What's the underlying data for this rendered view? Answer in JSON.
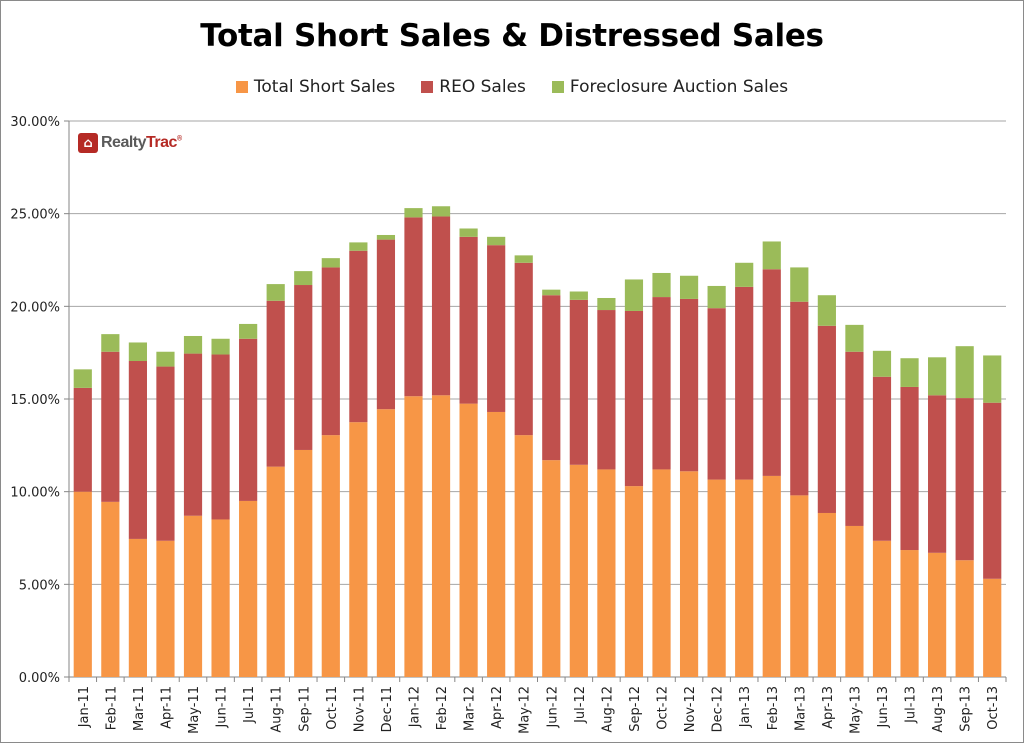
{
  "chart_data": {
    "type": "bar",
    "stacked": true,
    "title": "Total Short Sales & Distressed Sales",
    "xlabel": "",
    "ylabel": "",
    "ylim": [
      0,
      30
    ],
    "yticks": [
      "0.00%",
      "5.00%",
      "10.00%",
      "15.00%",
      "20.00%",
      "25.00%",
      "30.00%"
    ],
    "ytick_values": [
      0,
      5,
      10,
      15,
      20,
      25,
      30
    ],
    "grid": true,
    "legend_position": "top",
    "categories": [
      "Jan-11",
      "Feb-11",
      "Mar-11",
      "Apr-11",
      "May-11",
      "Jun-11",
      "Jul-11",
      "Aug-11",
      "Sep-11",
      "Oct-11",
      "Nov-11",
      "Dec-11",
      "Jan-12",
      "Feb-12",
      "Mar-12",
      "Apr-12",
      "May-12",
      "Jun-12",
      "Jul-12",
      "Aug-12",
      "Sep-12",
      "Oct-12",
      "Nov-12",
      "Dec-12",
      "Jan-13",
      "Feb-13",
      "Mar-13",
      "Apr-13",
      "May-13",
      "Jun-13",
      "Jul-13",
      "Aug-13",
      "Sep-13",
      "Oct-13"
    ],
    "series": [
      {
        "name": "Total Short Sales",
        "color": "#f79646",
        "values": [
          10.0,
          9.45,
          7.45,
          7.35,
          8.7,
          8.5,
          9.5,
          11.35,
          12.25,
          13.05,
          13.75,
          14.45,
          15.15,
          15.2,
          14.75,
          14.3,
          13.05,
          11.7,
          11.45,
          11.2,
          10.3,
          11.2,
          11.1,
          10.65,
          10.65,
          10.85,
          9.8,
          8.85,
          8.15,
          7.35,
          6.85,
          6.7,
          6.3,
          5.3
        ]
      },
      {
        "name": "REO Sales",
        "color": "#c0504d",
        "values": [
          5.6,
          8.1,
          9.6,
          9.4,
          8.75,
          8.9,
          8.75,
          8.95,
          8.9,
          9.05,
          9.25,
          9.15,
          9.65,
          9.65,
          9.0,
          9.0,
          9.3,
          8.9,
          8.9,
          8.6,
          9.45,
          9.3,
          9.3,
          9.25,
          10.4,
          11.15,
          10.45,
          10.1,
          9.4,
          8.85,
          8.8,
          8.5,
          8.75,
          9.5
        ]
      },
      {
        "name": "Foreclosure Auction Sales",
        "color": "#9bbb59",
        "values": [
          1.0,
          0.95,
          1.0,
          0.8,
          0.95,
          0.85,
          0.8,
          0.9,
          0.75,
          0.5,
          0.45,
          0.25,
          0.5,
          0.55,
          0.45,
          0.45,
          0.4,
          0.3,
          0.45,
          0.65,
          1.7,
          1.3,
          1.25,
          1.2,
          1.3,
          1.5,
          1.85,
          1.65,
          1.45,
          1.4,
          1.55,
          2.05,
          2.8,
          2.55
        ]
      }
    ]
  },
  "logo": {
    "icon": "house-icon",
    "text_part1": "Realty",
    "text_part2": "Trac",
    "mark": "®"
  }
}
